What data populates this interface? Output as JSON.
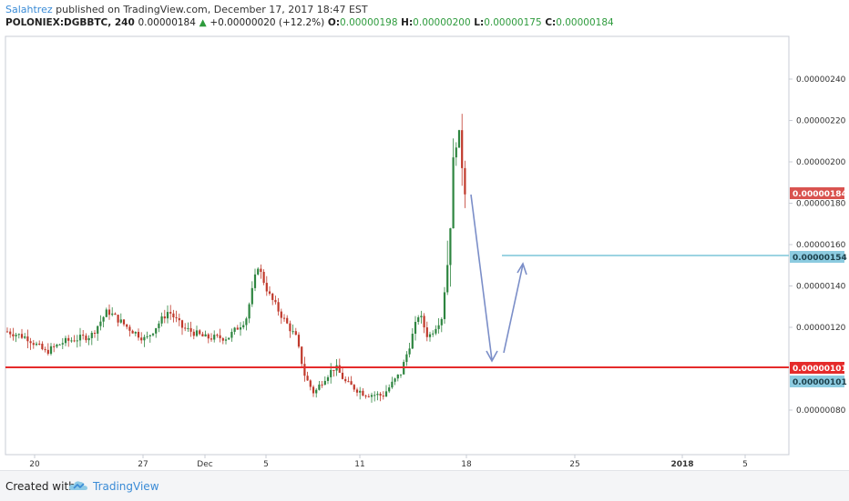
{
  "header": {
    "author": "Salahtrez",
    "published_text": " published on TradingView.com, December 17, 2017 18:47 EST",
    "symbol": "POLONIEX:DGBBTC, 240",
    "last": "0.00000184",
    "change": "+0.00000020 (+12.2%)",
    "o_label": "O:",
    "o_value": "0.00000198",
    "h_label": "H:",
    "h_value": "0.00000200",
    "l_label": "L:",
    "l_value": "0.00000175",
    "c_label": "C:",
    "c_value": "0.00000184"
  },
  "footer": {
    "created_text": "Created with",
    "brand": "TradingView"
  },
  "chart_data": {
    "type": "candlestick",
    "y_ticks": [
      "0.00000240",
      "0.00000220",
      "0.00000200",
      "0.00000180",
      "0.00000160",
      "0.00000140",
      "0.00000120",
      "0.00000080"
    ],
    "x_ticks": [
      "20",
      "27",
      "Dec",
      "5",
      "11",
      "18",
      "25",
      "2018",
      "5"
    ],
    "price_tags": [
      {
        "label": "0.00000184",
        "color": "#d9534f"
      },
      {
        "label": "0.00000154",
        "color": "#8ccbe0"
      },
      {
        "label": "0.00000101",
        "color": "#e52b2b"
      },
      {
        "label": "0.00000101",
        "color": "#8ccbe0"
      }
    ],
    "support_level": 1.01e-06,
    "target_level": 1.54e-06,
    "colors": {
      "up": "#2e8540",
      "down": "#c0392b",
      "support": "#e52b2b",
      "target": "#7cc6d8",
      "arrow": "#7b8ec8"
    }
  }
}
